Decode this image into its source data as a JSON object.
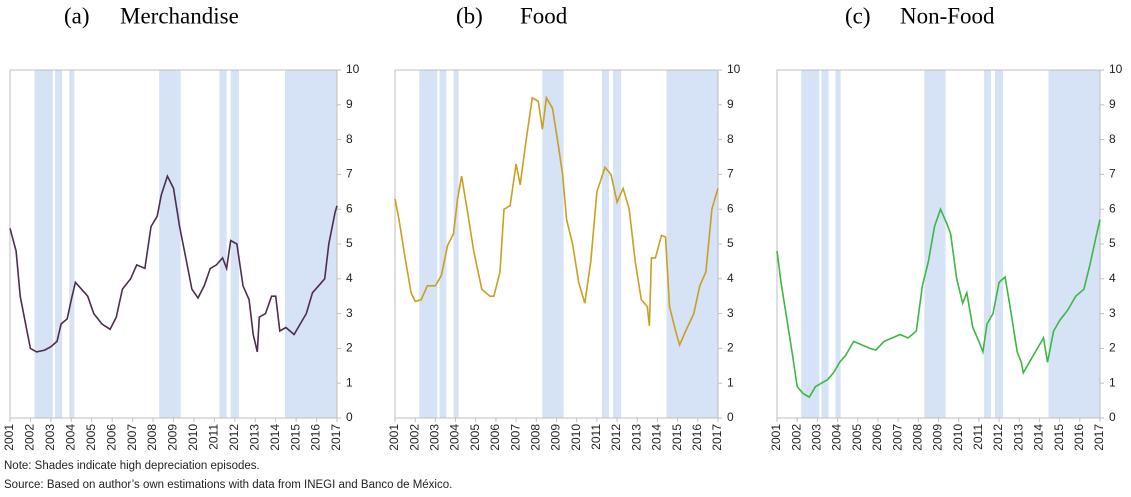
{
  "chart_data": [
    {
      "type": "line",
      "panel": "(a)",
      "title": "Merchandise",
      "x": [
        2001,
        2001.3,
        2001.5,
        2001.8,
        2002.0,
        2002.3,
        2002.7,
        2003.0,
        2003.3,
        2003.5,
        2003.8,
        2004.0,
        2004.2,
        2004.5,
        2004.8,
        2005.1,
        2005.5,
        2005.9,
        2006.2,
        2006.5,
        2006.9,
        2007.2,
        2007.6,
        2007.9,
        2008.2,
        2008.4,
        2008.7,
        2009.0,
        2009.3,
        2009.6,
        2009.9,
        2010.2,
        2010.5,
        2010.8,
        2011.1,
        2011.4,
        2011.6,
        2011.8,
        2012.1,
        2012.4,
        2012.7,
        2012.9,
        2013.1,
        2013.2,
        2013.5,
        2013.8,
        2014.0,
        2014.2,
        2014.5,
        2014.9,
        2015.2,
        2015.5,
        2015.8,
        2016.1,
        2016.4,
        2016.6,
        2016.9,
        2017.0
      ],
      "series": [
        {
          "color": "#4e2d4f",
          "values": [
            5.45,
            4.8,
            3.5,
            2.6,
            2.0,
            1.9,
            1.95,
            2.05,
            2.2,
            2.7,
            2.85,
            3.4,
            3.9,
            3.7,
            3.5,
            3.0,
            2.7,
            2.55,
            2.9,
            3.7,
            4.0,
            4.4,
            4.3,
            5.5,
            5.8,
            6.4,
            6.95,
            6.6,
            5.5,
            4.6,
            3.7,
            3.45,
            3.8,
            4.3,
            4.4,
            4.6,
            4.3,
            5.1,
            5.0,
            3.8,
            3.4,
            2.4,
            1.9,
            2.9,
            3.0,
            3.5,
            3.5,
            2.5,
            2.6,
            2.4,
            2.7,
            3.0,
            3.6,
            3.8,
            4.0,
            5.0,
            5.9,
            6.1
          ]
        }
      ],
      "shaded_periods": [
        [
          2002.2,
          2003.1
        ],
        [
          2003.2,
          2003.55
        ],
        [
          2003.9,
          2004.15
        ],
        [
          2008.3,
          2009.35
        ],
        [
          2011.25,
          2011.6
        ],
        [
          2011.8,
          2012.2
        ],
        [
          2014.45,
          2017
        ]
      ],
      "shade_color": "#d6e2f5",
      "xlim": [
        2001,
        2017
      ],
      "xticks": [
        2001,
        2002,
        2003,
        2004,
        2005,
        2006,
        2007,
        2008,
        2009,
        2010,
        2011,
        2012,
        2013,
        2014,
        2015,
        2016,
        2017
      ],
      "ylim": [
        0,
        10
      ],
      "yticks": [
        0,
        1,
        2,
        3,
        4,
        5,
        6,
        7,
        8,
        9,
        10
      ]
    },
    {
      "type": "line",
      "panel": "(b)",
      "title": "Food",
      "x": [
        2001,
        2001.2,
        2001.5,
        2001.8,
        2002.0,
        2002.3,
        2002.6,
        2003.0,
        2003.3,
        2003.6,
        2003.9,
        2004.1,
        2004.3,
        2004.6,
        2004.9,
        2005.3,
        2005.7,
        2005.9,
        2006.2,
        2006.4,
        2006.7,
        2007.0,
        2007.2,
        2007.5,
        2007.8,
        2008.1,
        2008.3,
        2008.5,
        2008.8,
        2009.1,
        2009.3,
        2009.5,
        2009.8,
        2010.1,
        2010.4,
        2010.7,
        2011.0,
        2011.4,
        2011.7,
        2012.0,
        2012.3,
        2012.6,
        2012.9,
        2013.2,
        2013.5,
        2013.6,
        2013.7,
        2013.9,
        2014.2,
        2014.4,
        2014.6,
        2014.9,
        2015.1,
        2015.4,
        2015.8,
        2016.1,
        2016.4,
        2016.7,
        2017.0
      ],
      "series": [
        {
          "color": "#c9a020",
          "values": [
            6.3,
            5.7,
            4.6,
            3.6,
            3.35,
            3.4,
            3.8,
            3.8,
            4.1,
            4.95,
            5.3,
            6.3,
            6.95,
            5.9,
            4.8,
            3.7,
            3.5,
            3.5,
            4.2,
            6.0,
            6.1,
            7.3,
            6.7,
            8.0,
            9.2,
            9.1,
            8.3,
            9.2,
            8.9,
            7.8,
            7.0,
            5.7,
            5.0,
            3.9,
            3.3,
            4.5,
            6.5,
            7.2,
            7.0,
            6.2,
            6.6,
            6.0,
            4.5,
            3.4,
            3.2,
            2.65,
            4.6,
            4.6,
            5.25,
            5.2,
            3.2,
            2.5,
            2.1,
            2.5,
            3.0,
            3.8,
            4.2,
            6.0,
            6.6
          ]
        }
      ],
      "shaded_periods": [
        [
          2002.2,
          2003.1
        ],
        [
          2003.2,
          2003.55
        ],
        [
          2003.9,
          2004.15
        ],
        [
          2008.3,
          2009.35
        ],
        [
          2011.25,
          2011.6
        ],
        [
          2011.8,
          2012.2
        ],
        [
          2014.45,
          2017
        ]
      ],
      "shade_color": "#d6e2f5",
      "xlim": [
        2001,
        2017
      ],
      "xticks": [
        2001,
        2002,
        2003,
        2004,
        2005,
        2006,
        2007,
        2008,
        2009,
        2010,
        2011,
        2012,
        2013,
        2014,
        2015,
        2016,
        2017
      ],
      "ylim": [
        0,
        10
      ],
      "yticks": [
        0,
        1,
        2,
        3,
        4,
        5,
        6,
        7,
        8,
        9,
        10
      ]
    },
    {
      "type": "line",
      "panel": "(c)",
      "title": "Non-Food",
      "x": [
        2001,
        2001.2,
        2001.5,
        2001.8,
        2002.0,
        2002.3,
        2002.6,
        2002.9,
        2003.2,
        2003.5,
        2003.8,
        2004.1,
        2004.4,
        2004.8,
        2005.2,
        2005.6,
        2005.9,
        2006.3,
        2006.7,
        2007.1,
        2007.5,
        2007.9,
        2008.2,
        2008.5,
        2008.8,
        2009.1,
        2009.4,
        2009.6,
        2009.9,
        2010.2,
        2010.4,
        2010.7,
        2011.0,
        2011.2,
        2011.4,
        2011.7,
        2012.0,
        2012.3,
        2012.6,
        2012.9,
        2013.1,
        2013.2,
        2013.5,
        2013.9,
        2014.2,
        2014.4,
        2014.7,
        2015.0,
        2015.4,
        2015.8,
        2016.2,
        2016.5,
        2016.8,
        2017.0
      ],
      "series": [
        {
          "color": "#3cb843",
          "values": [
            4.8,
            3.9,
            2.8,
            1.7,
            0.9,
            0.7,
            0.6,
            0.9,
            1.0,
            1.1,
            1.3,
            1.6,
            1.8,
            2.2,
            2.1,
            2.0,
            1.95,
            2.2,
            2.3,
            2.4,
            2.3,
            2.5,
            3.8,
            4.5,
            5.5,
            6.0,
            5.6,
            5.3,
            4.0,
            3.3,
            3.6,
            2.6,
            2.2,
            1.9,
            2.7,
            3.0,
            3.9,
            4.05,
            3.0,
            1.9,
            1.6,
            1.3,
            1.6,
            2.0,
            2.3,
            1.6,
            2.5,
            2.8,
            3.1,
            3.5,
            3.7,
            4.4,
            5.2,
            5.7
          ]
        }
      ],
      "shaded_periods": [
        [
          2002.2,
          2003.1
        ],
        [
          2003.2,
          2003.55
        ],
        [
          2003.9,
          2004.15
        ],
        [
          2008.3,
          2009.35
        ],
        [
          2011.25,
          2011.6
        ],
        [
          2011.8,
          2012.2
        ],
        [
          2014.45,
          2017
        ]
      ],
      "shade_color": "#d6e2f5",
      "xlim": [
        2001,
        2017
      ],
      "xticks": [
        2001,
        2002,
        2003,
        2004,
        2005,
        2006,
        2007,
        2008,
        2009,
        2010,
        2011,
        2012,
        2013,
        2014,
        2015,
        2016,
        2017
      ],
      "ylim": [
        0,
        10
      ],
      "yticks": [
        0,
        1,
        2,
        3,
        4,
        5,
        6,
        7,
        8,
        9,
        10
      ]
    }
  ],
  "note": "Note: Shades indicate high depreciation episodes.",
  "source": "Source:  Based on author’s own estimations with data from INEGI and Banco de México."
}
